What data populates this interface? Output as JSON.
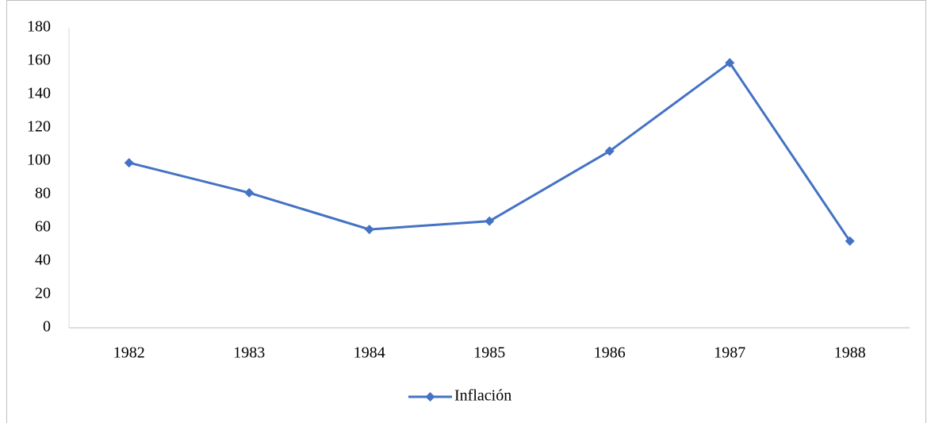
{
  "chart_data": {
    "type": "line",
    "categories": [
      "1982",
      "1983",
      "1984",
      "1985",
      "1986",
      "1987",
      "1988"
    ],
    "series": [
      {
        "name": "Inflación",
        "color": "#4472c4",
        "values": [
          99,
          81,
          59,
          64,
          106,
          159,
          52
        ]
      }
    ],
    "ylim": [
      0,
      180
    ],
    "yticks": [
      0,
      20,
      40,
      60,
      80,
      100,
      120,
      140,
      160,
      180
    ],
    "legend": "bottom"
  }
}
